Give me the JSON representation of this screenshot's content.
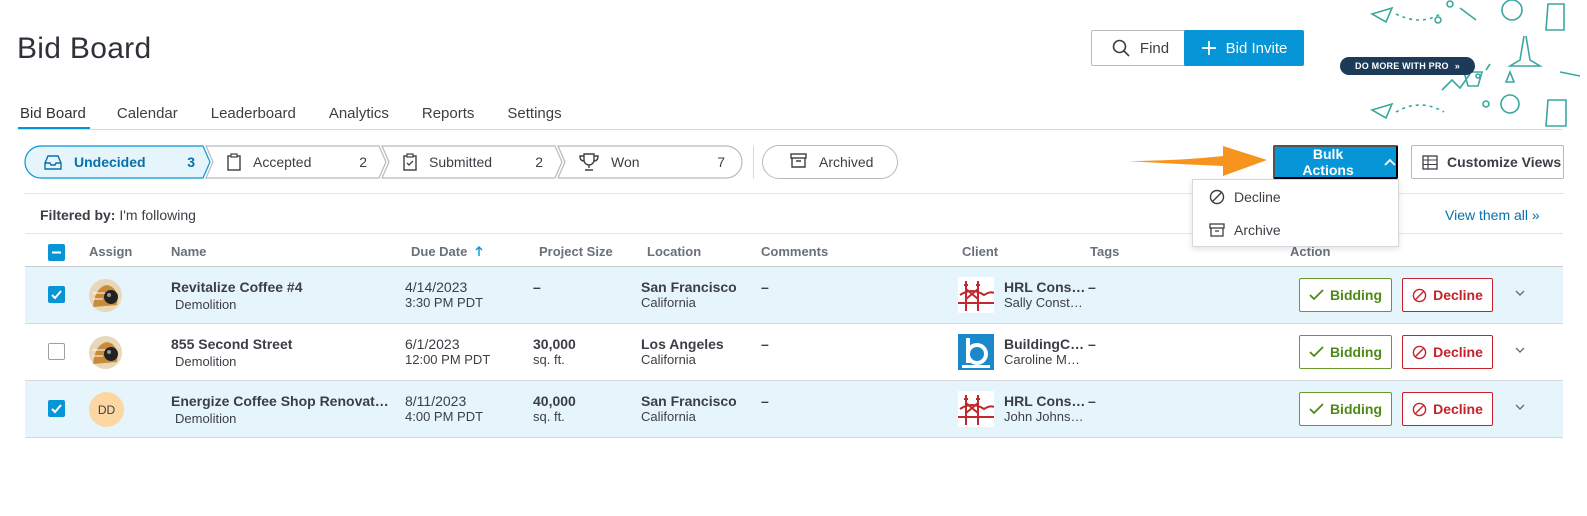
{
  "header": {
    "title": "Bid Board",
    "find_label": "Find",
    "bid_invite_label": "Bid Invite",
    "pro_badge": "DO MORE WITH PRO"
  },
  "tabs": [
    {
      "label": "Bid Board"
    },
    {
      "label": "Calendar"
    },
    {
      "label": "Leaderboard"
    },
    {
      "label": "Analytics"
    },
    {
      "label": "Reports"
    },
    {
      "label": "Settings"
    }
  ],
  "statuses": {
    "undecided": {
      "label": "Undecided",
      "count": "3"
    },
    "accepted": {
      "label": "Accepted",
      "count": "2"
    },
    "submitted": {
      "label": "Submitted",
      "count": "2"
    },
    "won": {
      "label": "Won",
      "count": "7"
    },
    "archived": {
      "label": "Archived"
    }
  },
  "toolbar": {
    "bulk_actions": "Bulk Actions",
    "customize_views": "Customize Views"
  },
  "bulk_menu": {
    "decline": "Decline",
    "archive": "Archive"
  },
  "filter": {
    "prefix": "Filtered by:",
    "value": "I'm following",
    "view_all": "View them all »"
  },
  "columns": {
    "assign": "Assign",
    "name": "Name",
    "due_date": "Due Date",
    "project_size": "Project Size",
    "location": "Location",
    "comments": "Comments",
    "client": "Client",
    "tags": "Tags",
    "action": "Action"
  },
  "actions": {
    "bidding": "Bidding",
    "decline": "Decline"
  },
  "rows": [
    {
      "name": "Revitalize Coffee #4",
      "trade": "Demolition",
      "date": "4/14/2023",
      "time": "3:30 PM PDT",
      "size": "–",
      "size_unit": "",
      "city": "San Francisco",
      "state": "California",
      "comments": "–",
      "client": "HRL Cons…",
      "contact": "Sally Const…",
      "tags": "–"
    },
    {
      "name": "855 Second Street",
      "trade": "Demolition",
      "date": "6/1/2023",
      "time": "12:00 PM PDT",
      "size": "30,000",
      "size_unit": "sq. ft.",
      "city": "Los Angeles",
      "state": "California",
      "comments": "–",
      "client": "BuildingC…",
      "contact": "Caroline M…",
      "tags": "–"
    },
    {
      "name": "Energize Coffee Shop Renovat…",
      "trade": "Demolition",
      "date": "8/11/2023",
      "time": "4:00 PM PDT",
      "size": "40,000",
      "size_unit": "sq. ft.",
      "city": "San Francisco",
      "state": "California",
      "comments": "–",
      "client": "HRL Cons…",
      "contact": "John Johns…",
      "tags": "–",
      "avatar_initials": "DD"
    }
  ],
  "colors": {
    "accent": "#0696d7",
    "success": "#4e8a16",
    "danger": "#c4212a",
    "selected_row": "#e6f4fb"
  }
}
